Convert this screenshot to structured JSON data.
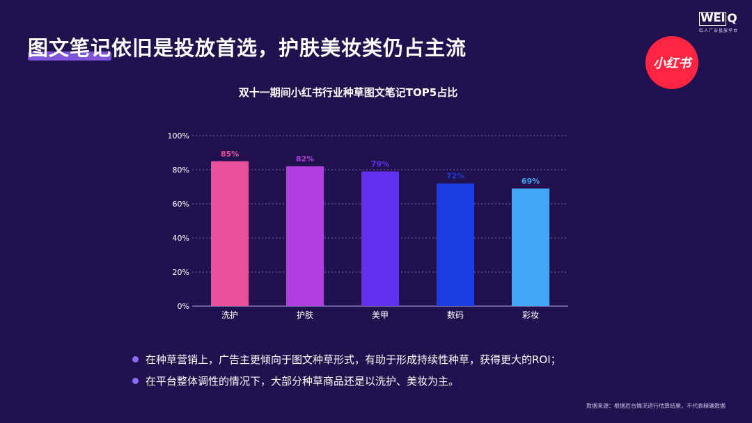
{
  "header": {
    "title": "图文笔记依旧是投放首选，护肤美妆类仍占主流",
    "brand_word": "WEI",
    "brand_letter": "Q",
    "brand_tagline": "红人广告投放平台",
    "xhs_logo": "小红书"
  },
  "chart_data": {
    "type": "bar",
    "title": "双十一期间小红书行业种草图文笔记TOP5占比",
    "categories": [
      "洗护",
      "护肤",
      "美甲",
      "数码",
      "彩妆"
    ],
    "values": [
      85,
      82,
      79,
      72,
      69
    ],
    "data_labels": [
      "85%",
      "82%",
      "79%",
      "72%",
      "69%"
    ],
    "bar_colors": [
      "#e8519a",
      "#b13cdf",
      "#6230ef",
      "#1a3ce0",
      "#42a8f5"
    ],
    "ylim": [
      0,
      100
    ],
    "yticks": [
      "0%",
      "20%",
      "40%",
      "60%",
      "80%",
      "100%"
    ],
    "grid": true
  },
  "bullets": [
    "在种草营销上，广告主更倾向于图文种草形式，有助于形成持续性种草，获得更大的ROI；",
    "在平台整体调性的情况下，大部分种草商品还是以洗护、美妆为主。"
  ],
  "source_note": "数据来源：根据后台情况进行估算结果，不代表精确数据"
}
